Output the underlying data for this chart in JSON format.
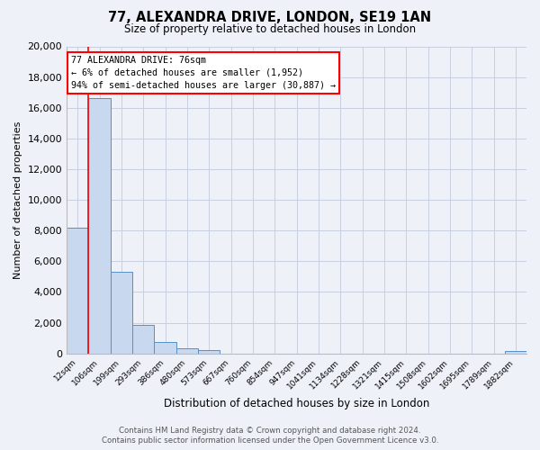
{
  "title": "77, ALEXANDRA DRIVE, LONDON, SE19 1AN",
  "subtitle": "Size of property relative to detached houses in London",
  "xlabel": "Distribution of detached houses by size in London",
  "ylabel": "Number of detached properties",
  "bar_labels": [
    "12sqm",
    "106sqm",
    "199sqm",
    "293sqm",
    "386sqm",
    "480sqm",
    "573sqm",
    "667sqm",
    "760sqm",
    "854sqm",
    "947sqm",
    "1041sqm",
    "1134sqm",
    "1228sqm",
    "1321sqm",
    "1415sqm",
    "1508sqm",
    "1602sqm",
    "1695sqm",
    "1789sqm",
    "1882sqm"
  ],
  "bar_values": [
    8200,
    16600,
    5300,
    1850,
    750,
    320,
    240,
    0,
    0,
    0,
    0,
    0,
    0,
    0,
    0,
    0,
    0,
    0,
    0,
    0,
    160
  ],
  "bar_color": "#c8d8ee",
  "bar_edge_color": "#5590c8",
  "ylim": [
    0,
    20000
  ],
  "yticks": [
    0,
    2000,
    4000,
    6000,
    8000,
    10000,
    12000,
    14000,
    16000,
    18000,
    20000
  ],
  "red_line_x": 0.5,
  "annotation_title": "77 ALEXANDRA DRIVE: 76sqm",
  "annotation_line1": "← 6% of detached houses are smaller (1,952)",
  "annotation_line2": "94% of semi-detached houses are larger (30,887) →",
  "footer_line1": "Contains HM Land Registry data © Crown copyright and database right 2024.",
  "footer_line2": "Contains public sector information licensed under the Open Government Licence v3.0.",
  "bg_color": "#eef2f8",
  "plot_bg_color": "#eef2f8",
  "grid_color": "#c8d0e0"
}
